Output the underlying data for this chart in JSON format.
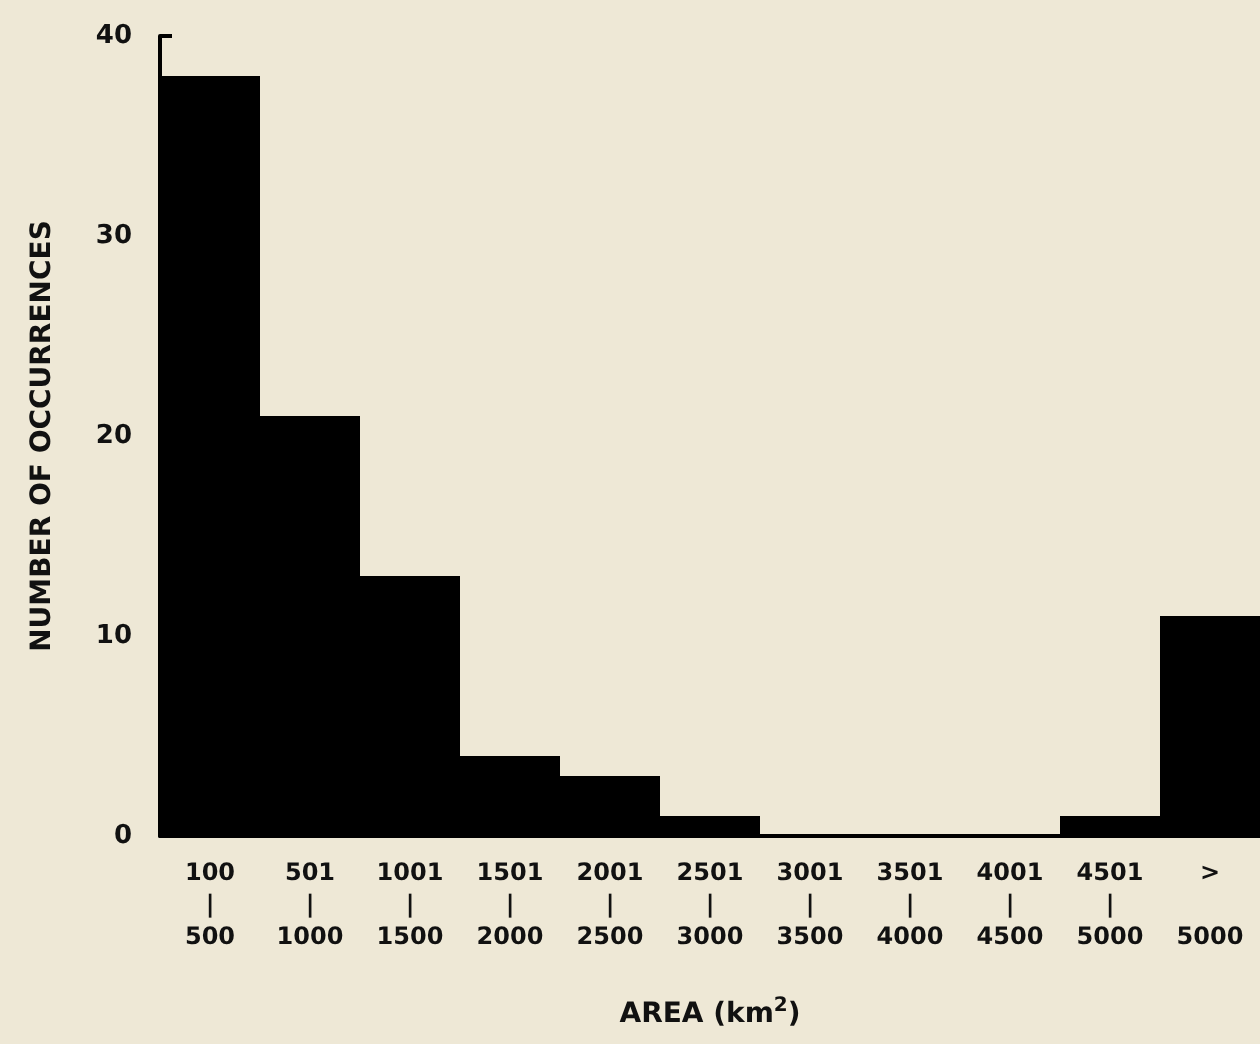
{
  "chart_data": {
    "type": "bar",
    "xlabel": "AREA (km$^{2}$)",
    "ylabel": "NUMBER OF OCCURRENCES",
    "categories": [
      "100\n|\n500",
      "501\n|\n1000",
      "1001\n|\n1500",
      "1501\n|\n2000",
      "2001\n|\n2500",
      "2501\n|\n3000",
      "3001\n|\n3500",
      "3501\n|\n4000",
      "4001\n|\n4500",
      "4501\n|\n5000",
      ">\n\n5000"
    ],
    "values": [
      38,
      21,
      13,
      4,
      3,
      1,
      0,
      0,
      0,
      1,
      11
    ],
    "color": "#000000",
    "ylim": [
      0,
      40
    ],
    "yticks": [
      0,
      10,
      20,
      30,
      40
    ],
    "grid": false
  }
}
